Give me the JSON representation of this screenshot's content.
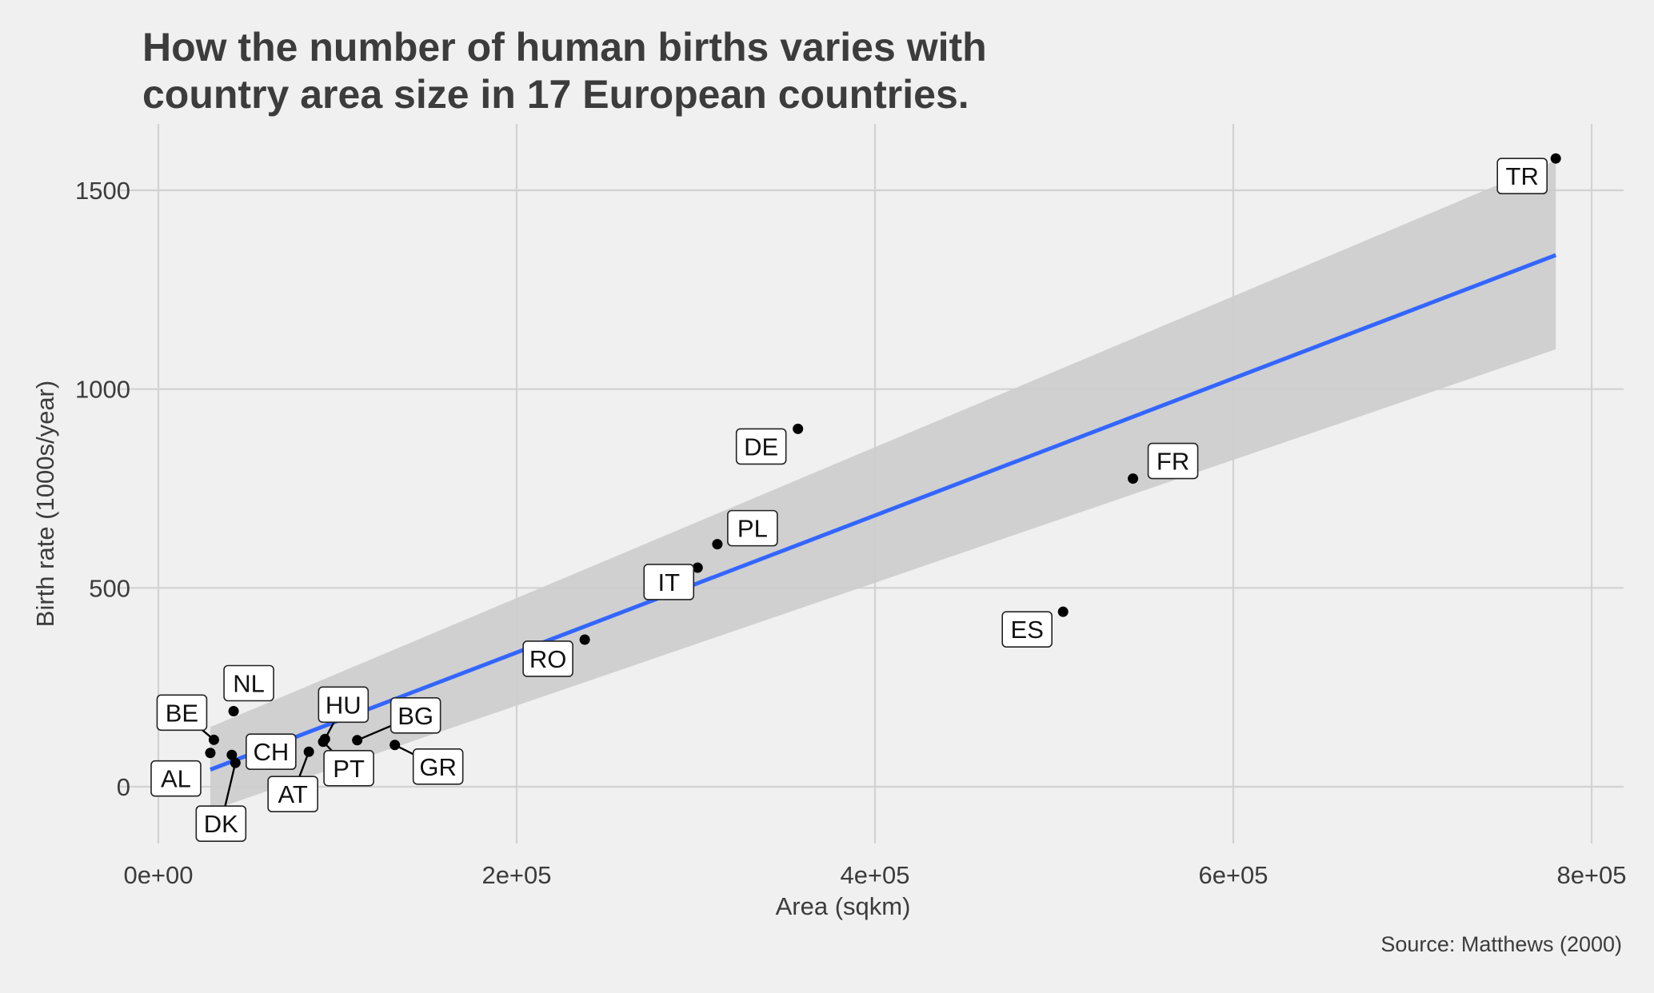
{
  "chart_data": {
    "type": "scatter",
    "title_lines": [
      "How the number of human births varies with",
      "country area size in 17 European countries."
    ],
    "xlabel": "Area (sqkm)",
    "ylabel": "Birth rate (1000s/year)",
    "caption": "Source: Matthews (2000)",
    "xlim": [
      -30000,
      820000
    ],
    "ylim": [
      -150,
      1650
    ],
    "x_ticks": [
      0,
      200000,
      400000,
      600000,
      800000
    ],
    "x_tick_labels": [
      "0e+00",
      "2e+05",
      "4e+05",
      "6e+05",
      "8e+05"
    ],
    "y_ticks": [
      0,
      500,
      1000,
      1500
    ],
    "y_tick_labels": [
      "0",
      "500",
      "1000",
      "1500"
    ],
    "grid": true,
    "points": [
      {
        "label": "TR",
        "x": 780000,
        "y": 1580
      },
      {
        "label": "DE",
        "x": 357000,
        "y": 900
      },
      {
        "label": "FR",
        "x": 544000,
        "y": 775
      },
      {
        "label": "PL",
        "x": 312000,
        "y": 610
      },
      {
        "label": "IT",
        "x": 301000,
        "y": 551
      },
      {
        "label": "ES",
        "x": 505000,
        "y": 440
      },
      {
        "label": "RO",
        "x": 238000,
        "y": 370
      },
      {
        "label": "NL",
        "x": 42000,
        "y": 190
      },
      {
        "label": "BE",
        "x": 31000,
        "y": 118
      },
      {
        "label": "HU",
        "x": 93000,
        "y": 120
      },
      {
        "label": "BG",
        "x": 111000,
        "y": 117
      },
      {
        "label": "GR",
        "x": 132000,
        "y": 105
      },
      {
        "label": "AL",
        "x": 29000,
        "y": 85
      },
      {
        "label": "CH",
        "x": 41000,
        "y": 80
      },
      {
        "label": "PT",
        "x": 92000,
        "y": 113
      },
      {
        "label": "AT",
        "x": 84000,
        "y": 88
      },
      {
        "label": "DK",
        "x": 43000,
        "y": 60
      }
    ],
    "fit": {
      "method": "lm",
      "color": "#3366ff",
      "x": [
        29000,
        780000
      ],
      "y": [
        43,
        1337
      ],
      "band_lower": [
        -60,
        1100
      ],
      "band_upper": [
        150,
        1575
      ],
      "band_color": "#cccccc"
    }
  }
}
